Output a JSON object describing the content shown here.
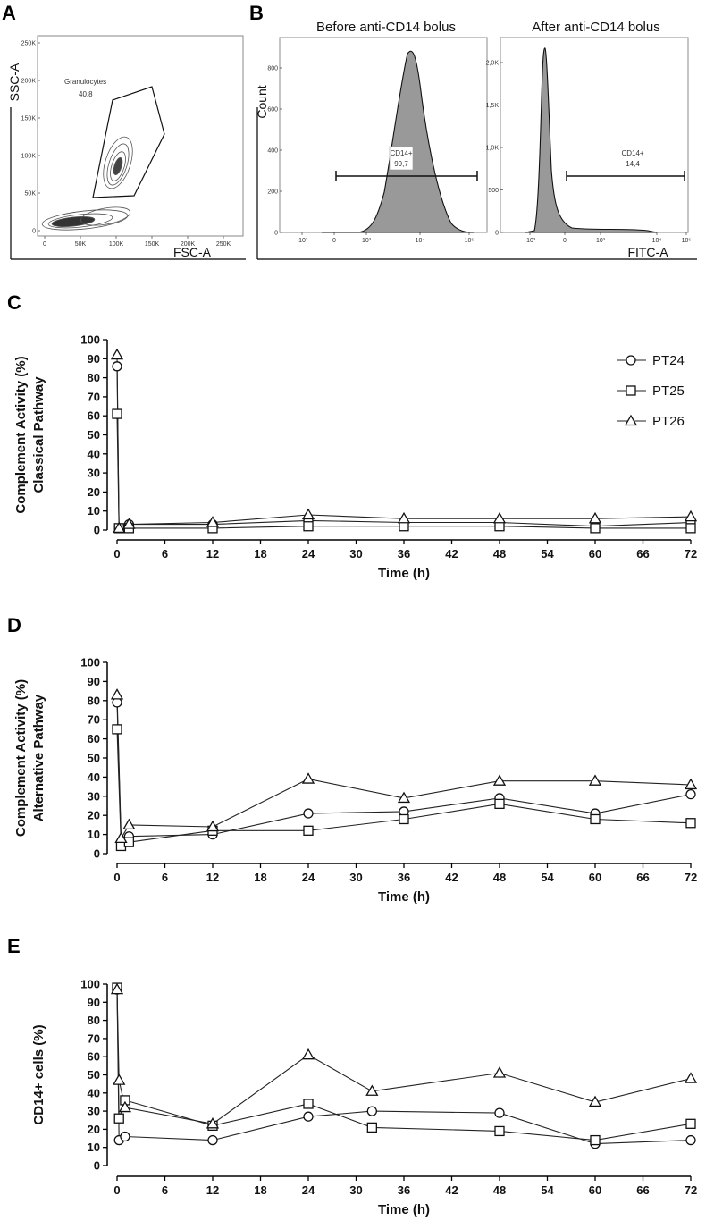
{
  "panel_letters": {
    "a": "A",
    "b": "B",
    "c": "C",
    "d": "D",
    "e": "E"
  },
  "flow": {
    "scatter": {
      "x_label": "FSC-A",
      "y_label": "SSC-A",
      "x_ticks": [
        "0",
        "50K",
        "100K",
        "150K",
        "200K",
        "250K"
      ],
      "y_ticks": [
        "0",
        "50K",
        "100K",
        "150K",
        "200K",
        "250K"
      ],
      "gate_name": "Granulocytes",
      "gate_value": "40,8"
    },
    "hist_before": {
      "title": "Before anti-CD14 bolus",
      "y_label": "Count",
      "y_ticks": [
        "0",
        "200",
        "400",
        "600",
        "800"
      ],
      "x_ticks": [
        "-10³",
        "0",
        "10³",
        "10⁴",
        "10⁵"
      ],
      "gate_name": "CD14+",
      "gate_value": "99,7"
    },
    "hist_after": {
      "title": "After anti-CD14 bolus",
      "x_label": "FITC-A",
      "y_ticks": [
        "0",
        "500",
        "1,0K",
        "1,5K",
        "2,0K"
      ],
      "x_ticks": [
        "-10³",
        "0",
        "10³",
        "10⁴",
        "10⁵"
      ],
      "gate_name": "CD14+",
      "gate_value": "14,4"
    }
  },
  "legend": [
    {
      "name": "PT24",
      "marker": "circle"
    },
    {
      "name": "PT25",
      "marker": "square"
    },
    {
      "name": "PT26",
      "marker": "triangle"
    }
  ],
  "chart_data": [
    {
      "type": "line",
      "panel": "C",
      "ylabel_line1": "Complement Activity (%)",
      "ylabel_line2": "Classical Pathway",
      "xlabel": "Time (h)",
      "xlim": [
        0,
        72
      ],
      "ylim": [
        0,
        100
      ],
      "x_ticks": [
        0,
        6,
        12,
        18,
        24,
        30,
        36,
        42,
        48,
        54,
        60,
        66,
        72
      ],
      "y_ticks": [
        0,
        10,
        20,
        30,
        40,
        50,
        60,
        70,
        80,
        90,
        100
      ],
      "series": [
        {
          "name": "PT24",
          "marker": "circle",
          "x": [
            0,
            0.25,
            1.5,
            12,
            24,
            36,
            48,
            60,
            72
          ],
          "y": [
            86,
            1,
            3,
            3,
            5,
            4,
            4,
            2,
            4
          ]
        },
        {
          "name": "PT25",
          "marker": "square",
          "x": [
            0,
            0.25,
            1.5,
            12,
            24,
            36,
            48,
            60,
            72
          ],
          "y": [
            61,
            1,
            1,
            1,
            2,
            2,
            2,
            1,
            1
          ]
        },
        {
          "name": "PT26",
          "marker": "triangle",
          "x": [
            0,
            0.25,
            1.5,
            12,
            24,
            36,
            48,
            60,
            72
          ],
          "y": [
            92,
            1,
            3,
            4,
            8,
            6,
            6,
            6,
            7
          ]
        }
      ]
    },
    {
      "type": "line",
      "panel": "D",
      "ylabel_line1": "Complement Activity (%)",
      "ylabel_line2": "Alternative Pathway",
      "xlabel": "Time (h)",
      "xlim": [
        0,
        72
      ],
      "ylim": [
        0,
        100
      ],
      "x_ticks": [
        0,
        6,
        12,
        18,
        24,
        30,
        36,
        42,
        48,
        54,
        60,
        66,
        72
      ],
      "y_ticks": [
        0,
        10,
        20,
        30,
        40,
        50,
        60,
        70,
        80,
        90,
        100
      ],
      "series": [
        {
          "name": "PT24",
          "marker": "circle",
          "x": [
            0,
            0.5,
            1.5,
            12,
            24,
            36,
            48,
            60,
            72
          ],
          "y": [
            79,
            6,
            9,
            10,
            21,
            22,
            29,
            21,
            31
          ]
        },
        {
          "name": "PT25",
          "marker": "square",
          "x": [
            0,
            0.5,
            1.5,
            12,
            24,
            36,
            48,
            60,
            72
          ],
          "y": [
            65,
            4,
            6,
            12,
            12,
            18,
            26,
            18,
            16
          ]
        },
        {
          "name": "PT26",
          "marker": "triangle",
          "x": [
            0,
            0.5,
            1.5,
            12,
            24,
            36,
            48,
            60,
            72
          ],
          "y": [
            83,
            8,
            15,
            14,
            39,
            29,
            38,
            38,
            36
          ]
        }
      ]
    },
    {
      "type": "line",
      "panel": "E",
      "ylabel": "CD14+ cells (%)",
      "xlabel": "Time (h)",
      "xlim": [
        0,
        72
      ],
      "ylim": [
        0,
        100
      ],
      "x_ticks": [
        0,
        6,
        12,
        18,
        24,
        30,
        36,
        42,
        48,
        54,
        60,
        66,
        72
      ],
      "y_ticks": [
        0,
        10,
        20,
        30,
        40,
        50,
        60,
        70,
        80,
        90,
        100
      ],
      "series": [
        {
          "name": "PT24",
          "marker": "circle",
          "x": [
            0,
            0.25,
            1,
            12,
            24,
            32,
            48,
            60,
            72
          ],
          "y": [
            97,
            14,
            16,
            14,
            27,
            30,
            29,
            12,
            14
          ]
        },
        {
          "name": "PT25",
          "marker": "square",
          "x": [
            0,
            0.25,
            1,
            12,
            24,
            32,
            48,
            60,
            72
          ],
          "y": [
            98,
            26,
            36,
            22,
            34,
            21,
            19,
            14,
            23
          ]
        },
        {
          "name": "PT26",
          "marker": "triangle",
          "x": [
            0,
            0.25,
            1,
            12,
            24,
            32,
            48,
            60,
            72
          ],
          "y": [
            97,
            47,
            32,
            23,
            61,
            41,
            51,
            35,
            48
          ]
        }
      ]
    }
  ]
}
